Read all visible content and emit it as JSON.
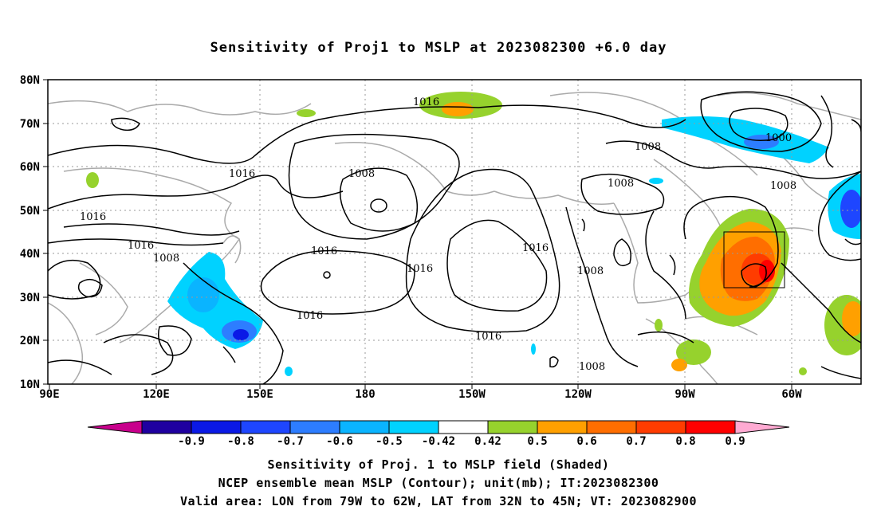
{
  "title": "Sensitivity of Proj1 to MSLP at 2023082300 +6.0 day",
  "map": {
    "lat_labels": [
      "80N",
      "70N",
      "60N",
      "50N",
      "40N",
      "30N",
      "20N",
      "10N"
    ],
    "lon_labels": [
      "90E",
      "120E",
      "150E",
      "180",
      "150W",
      "120W",
      "90W",
      "60W"
    ],
    "contour_labels": [
      "1016",
      "1016",
      "1016",
      "1016",
      "1008",
      "1016",
      "1016",
      "1016",
      "1016",
      "1016",
      "1016",
      "1008",
      "1008",
      "1008",
      "1008",
      "1008",
      "1008",
      "1000",
      "1008"
    ],
    "valid_box": {
      "lon_min": -79,
      "lon_max": -62,
      "lat_min": 32,
      "lat_max": 45
    }
  },
  "colorbar": {
    "labels": [
      "-0.9",
      "-0.8",
      "-0.7",
      "-0.6",
      "-0.5",
      "-0.42",
      "0.42",
      "0.5",
      "0.6",
      "0.7",
      "0.8",
      "0.9"
    ],
    "colors": [
      "#1f00a0",
      "#0a19e6",
      "#1e46ff",
      "#2d7dff",
      "#0ab4ff",
      "#00d2ff",
      "#ffffff",
      "#96d22d",
      "#ffa000",
      "#ff6e00",
      "#ff3c00",
      "#ff0000"
    ],
    "under_color": "#c8008c",
    "over_color": "#ffaad2"
  },
  "captions": {
    "line1": "Sensitivity of Proj. 1 to MSLP field (Shaded)",
    "line2": "NCEP ensemble mean MSLP (Contour); unit(mb); IT:2023082300",
    "line3": "Valid area: LON from 79W to 62W, LAT from 32N to 45N; VT: 2023082900"
  }
}
